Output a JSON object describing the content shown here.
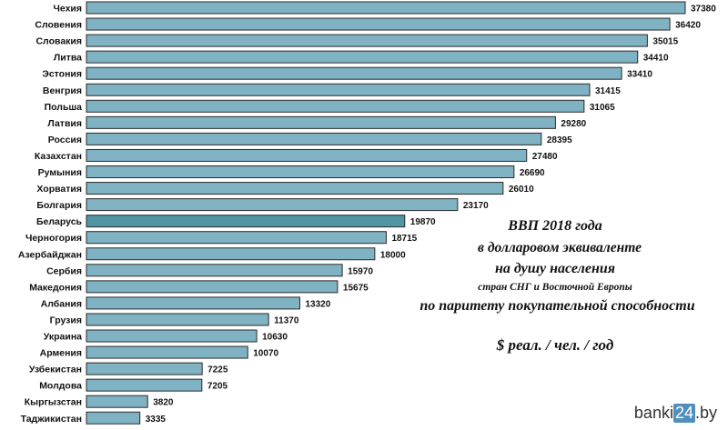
{
  "chart_data": {
    "type": "bar",
    "orientation": "horizontal",
    "categories": [
      "Чехия",
      "Словения",
      "Словакия",
      "Литва",
      "Эстония",
      "Венгрия",
      "Польша",
      "Латвия",
      "Россия",
      "Казахстан",
      "Румыния",
      "Хорватия",
      "Болгария",
      "Беларусь",
      "Черногория",
      "Азербайджан",
      "Сербия",
      "Македония",
      "Албания",
      "Грузия",
      "Украина",
      "Армения",
      "Узбекистан",
      "Молдова",
      "Кыргызстан",
      "Таджикистан"
    ],
    "values": [
      37380,
      36420,
      35015,
      34410,
      33410,
      31415,
      31065,
      29280,
      28395,
      27480,
      26690,
      26010,
      23170,
      19870,
      18715,
      18000,
      15970,
      15675,
      13320,
      11370,
      10630,
      10070,
      7225,
      7205,
      3820,
      3335
    ],
    "highlight": "Беларусь",
    "bar_color": "#7fb2c2",
    "highlight_color": "#4f95a4",
    "title_lines": [
      "ВВП 2018 года",
      "в долларовом эквиваленте",
      "на душу населения",
      "стран СНГ и Восточной Европы",
      "по паритету покупательной способности",
      "$ реал. / чел. / год"
    ]
  },
  "watermark": {
    "prefix": "banki",
    "number": "24",
    "suffix": ".by"
  }
}
